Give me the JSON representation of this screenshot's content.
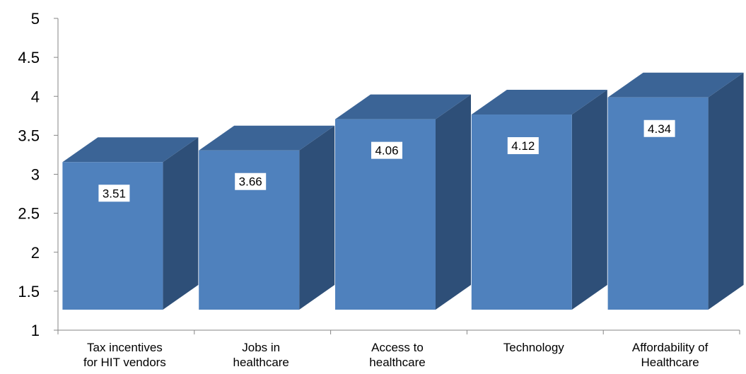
{
  "chart_data": {
    "type": "bar",
    "style": "3d-column",
    "categories": [
      [
        "Tax incentives",
        "for HIT vendors"
      ],
      [
        "Jobs in",
        "healthcare"
      ],
      [
        "Access to",
        "healthcare"
      ],
      [
        "Technology"
      ],
      [
        "Affordability of",
        "Healthcare"
      ]
    ],
    "values": [
      3.51,
      3.66,
      4.06,
      4.12,
      4.34
    ],
    "value_labels": [
      "3.51",
      "3.66",
      "4.06",
      "4.12",
      "4.34"
    ],
    "title": "",
    "xlabel": "",
    "ylabel": "",
    "ylim": [
      1,
      5
    ],
    "yticks": [
      1,
      1.5,
      2,
      2.5,
      3,
      3.5,
      4,
      4.5,
      5
    ],
    "ytick_labels": [
      "1",
      "1.5",
      "2",
      "2.5",
      "3",
      "3.5",
      "4",
      "4.5",
      "5"
    ],
    "grid": false,
    "legend": "none",
    "colors": {
      "bar_front": "#4f81bd",
      "bar_top": "#3b6496",
      "bar_side": "#2e4f78",
      "axis": "#868686",
      "label_box": "#ffffff"
    }
  }
}
